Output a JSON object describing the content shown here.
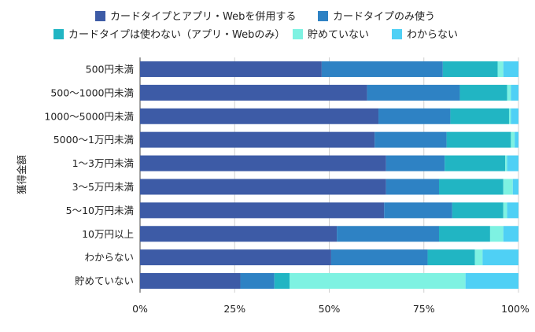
{
  "chart_data": {
    "type": "bar",
    "orientation": "horizontal",
    "stacked": "percent",
    "ylabel": "獲得金額",
    "xlim": [
      0,
      100
    ],
    "x_ticks": [
      "0%",
      "25%",
      "50%",
      "75%",
      "100%"
    ],
    "legend_position": "top",
    "categories": [
      "500円未満",
      "500〜1000円未満",
      "1000〜5000円未満",
      "5000〜1万円未満",
      "1〜3万円未満",
      "3〜5万円未満",
      "5〜10万円未満",
      "10万円以上",
      "わからない",
      "貯めていない"
    ],
    "series": [
      {
        "name": "カードタイプとアプリ・Webを併用する",
        "color": "#3d5ba6",
        "values": [
          48,
          60,
          63,
          62,
          65,
          65,
          64.5,
          52,
          50.5,
          26.5
        ]
      },
      {
        "name": "カードタイプのみ使う",
        "color": "#2e82c4",
        "values": [
          32,
          24.5,
          19,
          19,
          15.5,
          14,
          18,
          27,
          25.5,
          9
        ]
      },
      {
        "name": "カードタイプは使わない（アプリ・Webのみ）",
        "color": "#21b5c3",
        "values": [
          14.5,
          12.5,
          15.5,
          17,
          16,
          17,
          13.5,
          13.5,
          12.5,
          4
        ]
      },
      {
        "name": "貯めていない",
        "color": "#7ef2e2",
        "values": [
          1.5,
          1,
          0.5,
          1,
          0.5,
          2.5,
          1,
          3.5,
          2,
          46.5
        ]
      },
      {
        "name": "わからない",
        "color": "#4fd0f5",
        "values": [
          4,
          2,
          2,
          1,
          3,
          1.5,
          3,
          4,
          9.5,
          14
        ]
      }
    ]
  }
}
